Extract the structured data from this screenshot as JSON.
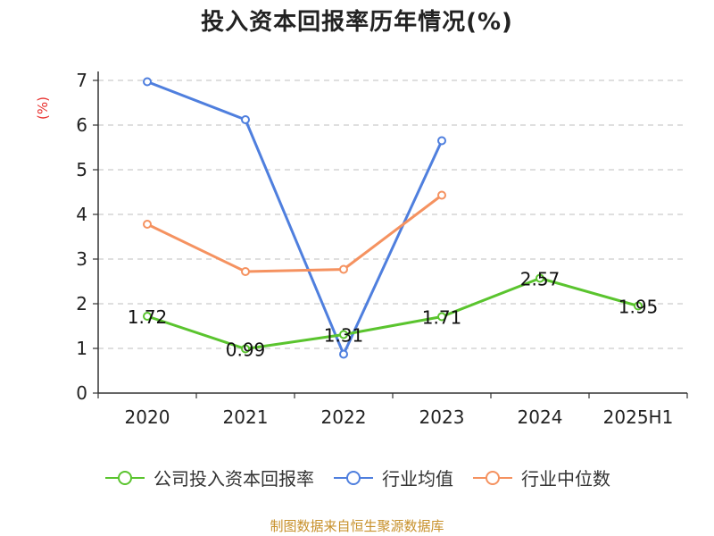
{
  "chart_data": {
    "type": "line",
    "title": "投入资本回报率历年情况(%)",
    "ylabel": "(%)",
    "xlabel": "",
    "categories": [
      "2020",
      "2021",
      "2022",
      "2023",
      "2024",
      "2025H1"
    ],
    "ylim": [
      0,
      7
    ],
    "yticks": [
      "0",
      "1",
      "2",
      "3",
      "4",
      "5",
      "6",
      "7"
    ],
    "grid": "horizontal-dashed",
    "legend_position": "bottom",
    "series": [
      {
        "name": "公司投入资本回报率",
        "color": "#5ac42e",
        "values": [
          1.72,
          0.99,
          1.31,
          1.71,
          2.57,
          1.95
        ],
        "labels": [
          "1.72",
          "0.99",
          "1.31",
          "1.71",
          "2.57",
          "1.95"
        ]
      },
      {
        "name": "行业均值",
        "color": "#4f7fde",
        "values": [
          6.97,
          6.12,
          0.87,
          5.65,
          null,
          null
        ]
      },
      {
        "name": "行业中位数",
        "color": "#f59260",
        "values": [
          3.78,
          2.72,
          2.77,
          4.43,
          null,
          null
        ]
      }
    ]
  },
  "source": "制图数据来自恒生聚源数据库"
}
